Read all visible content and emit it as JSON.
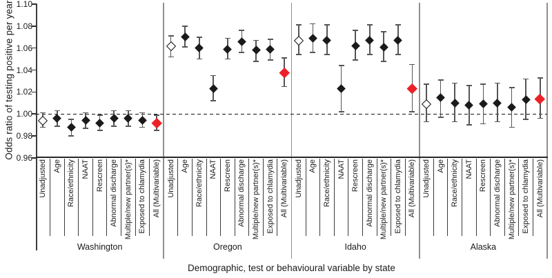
{
  "chart_data": {
    "type": "scatter",
    "subtype": "forest_plot_odds_ratios_with_95ci",
    "title": "",
    "xlabel": "Demographic, test or behavioural variable by state",
    "ylabel": "Odds ratio of testing positive per year",
    "ylim": [
      0.96,
      1.1
    ],
    "yticks": [
      1.1,
      1.08,
      1.06,
      1.04,
      1.02,
      1.0,
      0.98,
      0.96
    ],
    "ytick_labels": [
      "1.10",
      "1.08",
      "1.06",
      "1.04",
      "1.02",
      "1.00",
      "0.98",
      "0.96"
    ],
    "reference_line": 1.0,
    "reference_line_style": "dashed",
    "grid": false,
    "legend": "none",
    "categories": [
      "Unadjusted",
      "Age",
      "Race/ethnicity",
      "NAAT",
      "Rescreen",
      "Abnormal discharge",
      "Multiple/new partner(s)*",
      "Exposed to chlamydia",
      "All (Multivariable)"
    ],
    "marker_styles": [
      "open",
      "filled",
      "filled",
      "filled",
      "filled",
      "filled",
      "filled",
      "filled",
      "red"
    ],
    "groups": [
      {
        "state": "Washington",
        "or": [
          0.994,
          0.996,
          0.988,
          0.994,
          0.992,
          0.996,
          0.996,
          0.994,
          0.992
        ],
        "ci_low": [
          0.988,
          0.989,
          0.98,
          0.987,
          0.985,
          0.989,
          0.989,
          0.988,
          0.985
        ],
        "ci_high": [
          1.001,
          1.003,
          0.995,
          1.001,
          0.999,
          1.003,
          1.003,
          1.001,
          0.999
        ]
      },
      {
        "state": "Oregon",
        "or": [
          1.062,
          1.07,
          1.06,
          1.023,
          1.059,
          1.066,
          1.058,
          1.059,
          1.038
        ],
        "ci_low": [
          1.052,
          1.061,
          1.05,
          1.012,
          1.05,
          1.056,
          1.048,
          1.049,
          1.025
        ],
        "ci_high": [
          1.071,
          1.08,
          1.07,
          1.035,
          1.069,
          1.076,
          1.067,
          1.068,
          1.051
        ]
      },
      {
        "state": "Idaho",
        "or": [
          1.067,
          1.069,
          1.067,
          1.023,
          1.062,
          1.067,
          1.061,
          1.067,
          1.023
        ],
        "ci_low": [
          1.054,
          1.056,
          1.054,
          1.002,
          1.049,
          1.054,
          1.048,
          1.054,
          1.002
        ],
        "ci_high": [
          1.081,
          1.082,
          1.081,
          1.044,
          1.076,
          1.081,
          1.075,
          1.081,
          1.045
        ]
      },
      {
        "state": "Alaska",
        "or": [
          1.009,
          1.015,
          1.01,
          1.008,
          1.009,
          1.01,
          1.006,
          1.013,
          1.014
        ],
        "ci_low": [
          0.993,
          0.997,
          0.993,
          0.99,
          0.991,
          0.993,
          0.988,
          0.995,
          0.996
        ],
        "ci_high": [
          1.027,
          1.031,
          1.028,
          1.026,
          1.027,
          1.028,
          1.024,
          1.032,
          1.033
        ]
      }
    ]
  },
  "colors": {
    "marker_filled": "#1a1a1a",
    "marker_open_fill": "#ffffff",
    "marker_open_border": "#111111",
    "marker_red": "#ec2127",
    "whisker": "#555555",
    "panel_separator": "#8f8f8f",
    "axis": "#262626",
    "reference_line": "#111111"
  }
}
